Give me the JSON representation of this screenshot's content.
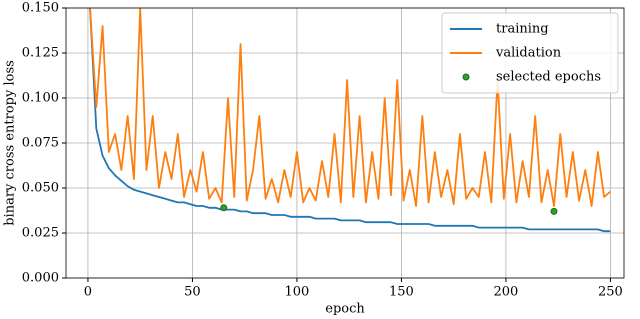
{
  "chart_data": {
    "type": "line",
    "xlabel": "epoch",
    "ylabel": "binary cross entropy loss",
    "x": [
      1,
      4,
      7,
      10,
      13,
      16,
      19,
      22,
      25,
      28,
      31,
      34,
      37,
      40,
      43,
      46,
      49,
      52,
      55,
      58,
      61,
      64,
      67,
      70,
      73,
      76,
      79,
      82,
      85,
      88,
      91,
      94,
      97,
      100,
      103,
      106,
      109,
      112,
      115,
      118,
      121,
      124,
      127,
      130,
      133,
      136,
      139,
      142,
      145,
      148,
      151,
      154,
      157,
      160,
      163,
      166,
      169,
      172,
      175,
      178,
      181,
      184,
      187,
      190,
      193,
      196,
      199,
      202,
      205,
      208,
      211,
      214,
      217,
      220,
      223,
      226,
      229,
      232,
      235,
      238,
      241,
      244,
      247,
      250
    ],
    "series": [
      {
        "name": "training",
        "color": "#1f77b4",
        "values": [
          0.15,
          0.083,
          0.068,
          0.061,
          0.057,
          0.054,
          0.051,
          0.049,
          0.048,
          0.047,
          0.046,
          0.045,
          0.044,
          0.043,
          0.042,
          0.042,
          0.041,
          0.04,
          0.04,
          0.039,
          0.039,
          0.038,
          0.038,
          0.038,
          0.037,
          0.037,
          0.036,
          0.036,
          0.036,
          0.035,
          0.035,
          0.035,
          0.034,
          0.034,
          0.034,
          0.034,
          0.033,
          0.033,
          0.033,
          0.033,
          0.032,
          0.032,
          0.032,
          0.032,
          0.031,
          0.031,
          0.031,
          0.031,
          0.031,
          0.03,
          0.03,
          0.03,
          0.03,
          0.03,
          0.03,
          0.029,
          0.029,
          0.029,
          0.029,
          0.029,
          0.029,
          0.029,
          0.028,
          0.028,
          0.028,
          0.028,
          0.028,
          0.028,
          0.028,
          0.028,
          0.027,
          0.027,
          0.027,
          0.027,
          0.027,
          0.027,
          0.027,
          0.027,
          0.027,
          0.027,
          0.027,
          0.027,
          0.026,
          0.026
        ]
      },
      {
        "name": "validation",
        "color": "#ff7f0e",
        "values": [
          0.15,
          0.095,
          0.14,
          0.07,
          0.08,
          0.06,
          0.09,
          0.055,
          0.15,
          0.06,
          0.09,
          0.05,
          0.07,
          0.055,
          0.08,
          0.045,
          0.06,
          0.048,
          0.07,
          0.044,
          0.05,
          0.042,
          0.1,
          0.045,
          0.13,
          0.043,
          0.06,
          0.09,
          0.044,
          0.055,
          0.042,
          0.06,
          0.045,
          0.07,
          0.042,
          0.05,
          0.043,
          0.065,
          0.045,
          0.08,
          0.042,
          0.11,
          0.045,
          0.09,
          0.042,
          0.07,
          0.044,
          0.1,
          0.046,
          0.11,
          0.043,
          0.06,
          0.04,
          0.09,
          0.042,
          0.07,
          0.045,
          0.06,
          0.041,
          0.08,
          0.044,
          0.05,
          0.045,
          0.07,
          0.042,
          0.11,
          0.044,
          0.08,
          0.042,
          0.065,
          0.045,
          0.09,
          0.042,
          0.06,
          0.04,
          0.08,
          0.045,
          0.07,
          0.043,
          0.06,
          0.04,
          0.07,
          0.045,
          0.048
        ]
      },
      {
        "name": "selected epochs",
        "color": "#2ca02c",
        "marker": "circle",
        "x": [
          65,
          223
        ],
        "values": [
          0.039,
          0.037
        ]
      }
    ],
    "xlim": [
      -10.5,
      256.5
    ],
    "ylim": [
      0,
      0.15
    ],
    "xticks": [
      0,
      50,
      100,
      150,
      200,
      250
    ],
    "yticks": [
      {
        "value": 0,
        "label": "0.000"
      },
      {
        "value": 0.025,
        "label": "0.025"
      },
      {
        "value": 0.05,
        "label": "0.050"
      },
      {
        "value": 0.075,
        "label": "0.075"
      },
      {
        "value": 0.1,
        "label": "0.100"
      },
      {
        "value": 0.125,
        "label": "0.125"
      },
      {
        "value": 0.15,
        "label": "0.150"
      }
    ],
    "grid": true,
    "legend": "upper right"
  }
}
